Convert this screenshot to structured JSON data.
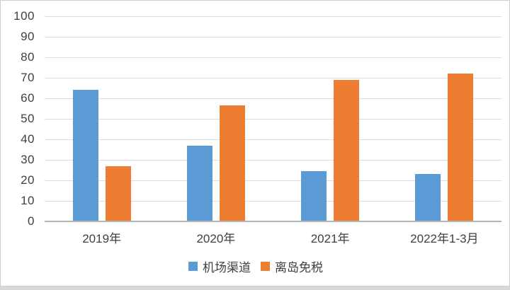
{
  "chart_data": {
    "type": "bar",
    "categories": [
      "2019年",
      "2020年",
      "2021年",
      "2022年1-3月"
    ],
    "series": [
      {
        "name": "机场渠道",
        "color": "#5B9BD5",
        "values": [
          64,
          37,
          24.5,
          23
        ]
      },
      {
        "name": "离岛免税",
        "color": "#ED7D31",
        "values": [
          27,
          56.5,
          69,
          72
        ]
      }
    ],
    "title": "",
    "xlabel": "",
    "ylabel": "",
    "ylim": [
      0,
      100
    ],
    "ytick_step": 10,
    "ytick_labels": [
      "0",
      "10",
      "20",
      "30",
      "40",
      "50",
      "60",
      "70",
      "80",
      "90",
      "100"
    ],
    "grid": true,
    "legend_position": "bottom"
  },
  "colors": {
    "gridline": "#DCDCDC",
    "axis_line": "#B5B5B5",
    "text": "#404040",
    "card_border": "#CFCFCF",
    "bottom_strip": "#D8D8D8",
    "background": "#FFFFFF"
  }
}
